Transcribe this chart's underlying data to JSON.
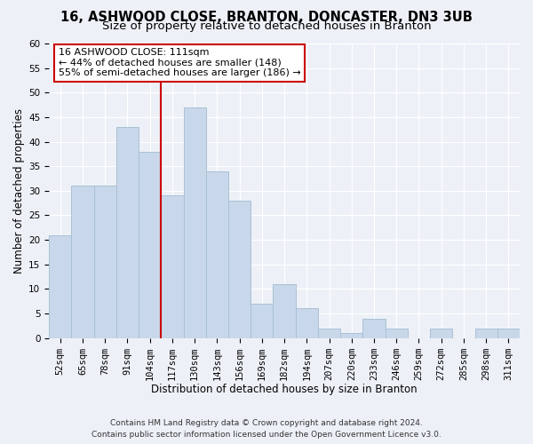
{
  "title1": "16, ASHWOOD CLOSE, BRANTON, DONCASTER, DN3 3UB",
  "title2": "Size of property relative to detached houses in Branton",
  "xlabel": "Distribution of detached houses by size in Branton",
  "ylabel": "Number of detached properties",
  "bar_labels": [
    "52sqm",
    "65sqm",
    "78sqm",
    "91sqm",
    "104sqm",
    "117sqm",
    "130sqm",
    "143sqm",
    "156sqm",
    "169sqm",
    "182sqm",
    "194sqm",
    "207sqm",
    "220sqm",
    "233sqm",
    "246sqm",
    "259sqm",
    "272sqm",
    "285sqm",
    "298sqm",
    "311sqm"
  ],
  "bar_values": [
    21,
    31,
    31,
    43,
    38,
    29,
    47,
    34,
    28,
    7,
    11,
    6,
    2,
    1,
    4,
    2,
    0,
    2,
    0,
    2,
    2
  ],
  "bar_color": "#c8d8ea",
  "bar_edge_color": "#aac0d4",
  "vline_color": "#cc0000",
  "ylim": [
    0,
    60
  ],
  "yticks": [
    0,
    5,
    10,
    15,
    20,
    25,
    30,
    35,
    40,
    45,
    50,
    55,
    60
  ],
  "annotation_title": "16 ASHWOOD CLOSE: 111sqm",
  "annotation_line1": "← 44% of detached houses are smaller (148)",
  "annotation_line2": "55% of semi-detached houses are larger (186) →",
  "annotation_box_facecolor": "#ffffff",
  "annotation_box_edgecolor": "#cc0000",
  "footnote1": "Contains HM Land Registry data © Crown copyright and database right 2024.",
  "footnote2": "Contains public sector information licensed under the Open Government Licence v3.0.",
  "background_color": "#edf1f7",
  "grid_color": "#ffffff",
  "title1_fontsize": 10.5,
  "title2_fontsize": 9.5,
  "tick_fontsize": 7.5,
  "axis_label_fontsize": 8.5,
  "annotation_fontsize": 8,
  "footnote_fontsize": 6.5
}
